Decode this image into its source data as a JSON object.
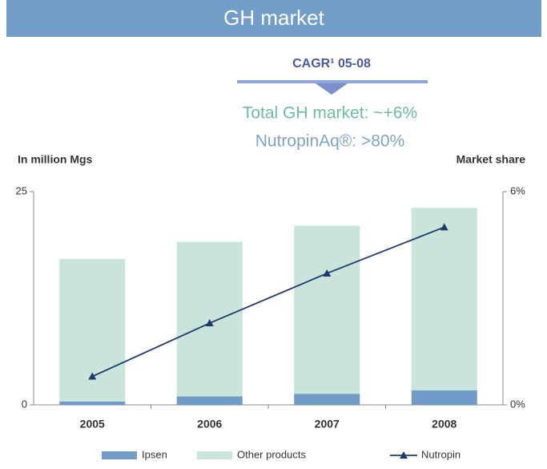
{
  "header": {
    "title": "GH market"
  },
  "annotations": {
    "cagr": "CAGR¹ 05-08",
    "total": "Total GH market: ~+6%",
    "nutropin": "NutropinAq®: >80%"
  },
  "chart_data": {
    "type": "bar",
    "stacked": true,
    "ylabel": "In million Mgs",
    "y2label": "Market share",
    "categories": [
      "2005",
      "2006",
      "2007",
      "2008"
    ],
    "series": [
      {
        "name": "Ipsen",
        "color": "#6f9bc6",
        "values": [
          0.4,
          1.0,
          1.3,
          1.7
        ]
      },
      {
        "name": "Other products",
        "color": "#c9e4da",
        "values": [
          16.7,
          18.1,
          19.7,
          21.4
        ]
      },
      {
        "name": "Nutropin",
        "type": "line",
        "axis": "y2",
        "color": "#1f3a6e",
        "values": [
          0.8,
          2.3,
          3.7,
          5.0
        ]
      }
    ],
    "ylim": [
      0,
      25
    ],
    "yticks": [
      0,
      25
    ],
    "y2lim": [
      0,
      6
    ],
    "y2ticks": [
      {
        "value": 0,
        "label": "0%"
      },
      {
        "value": 6,
        "label": "6%"
      }
    ],
    "legend": "bottom"
  }
}
